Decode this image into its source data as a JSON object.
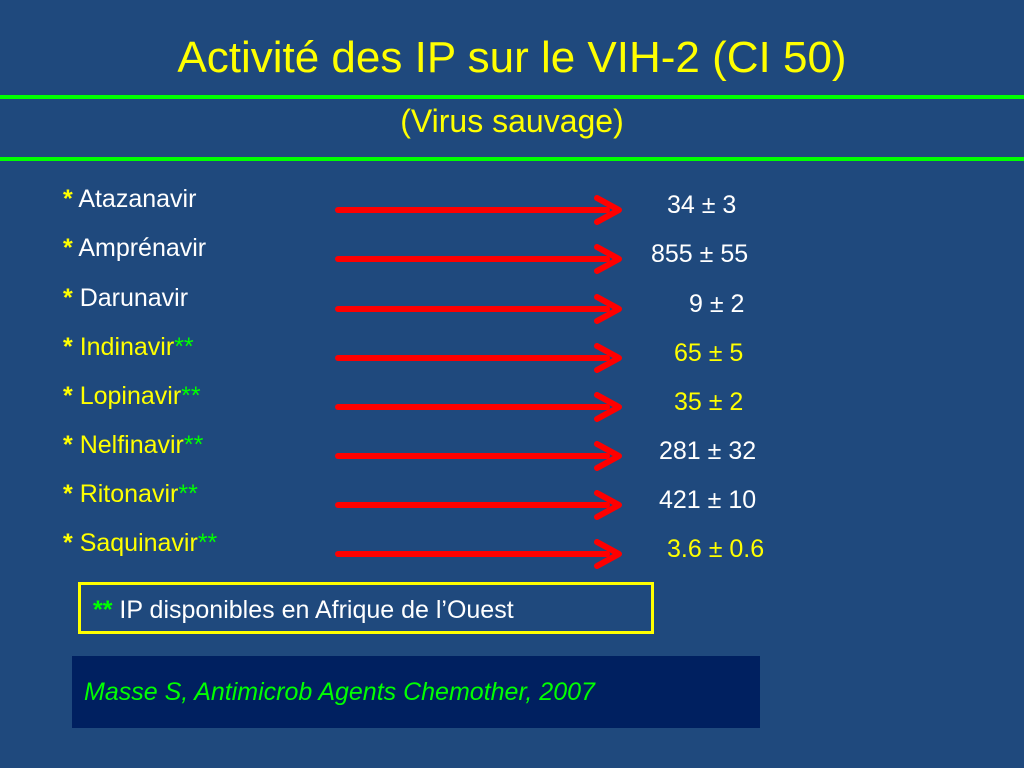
{
  "title": "Activité des IP sur le VIH-2 (CI 50)",
  "subtitle": "(Virus sauvage)",
  "star": "*",
  "double_star": "**",
  "rows": [
    {
      "name": "Atazanavir",
      "value": "34 ± 3"
    },
    {
      "name": "Amprénavir",
      "value": "855 ± 55"
    },
    {
      "name": "Darunavir",
      "value": "9 ± 2"
    },
    {
      "name": "Indinavir",
      "value": "65 ± 5"
    },
    {
      "name": "Lopinavir",
      "value": "35 ± 2"
    },
    {
      "name": "Nelfinavir",
      "value": "281 ± 32"
    },
    {
      "name": "Ritonavir",
      "value": "421 ± 10"
    },
    {
      "name": "Saquinavir",
      "value": "3.6 ± 0.6"
    }
  ],
  "footnote": {
    "marker": "**",
    "text": "IP disponibles en Afrique de l’Ouest"
  },
  "reference": "Masse S, Antimicrob Agents Chemother, 2007",
  "colors": {
    "background": "#1f497d",
    "title": "#ffff00",
    "rule": "#00ff00",
    "arrow": "#ff0000",
    "reference_box": "#002060"
  }
}
